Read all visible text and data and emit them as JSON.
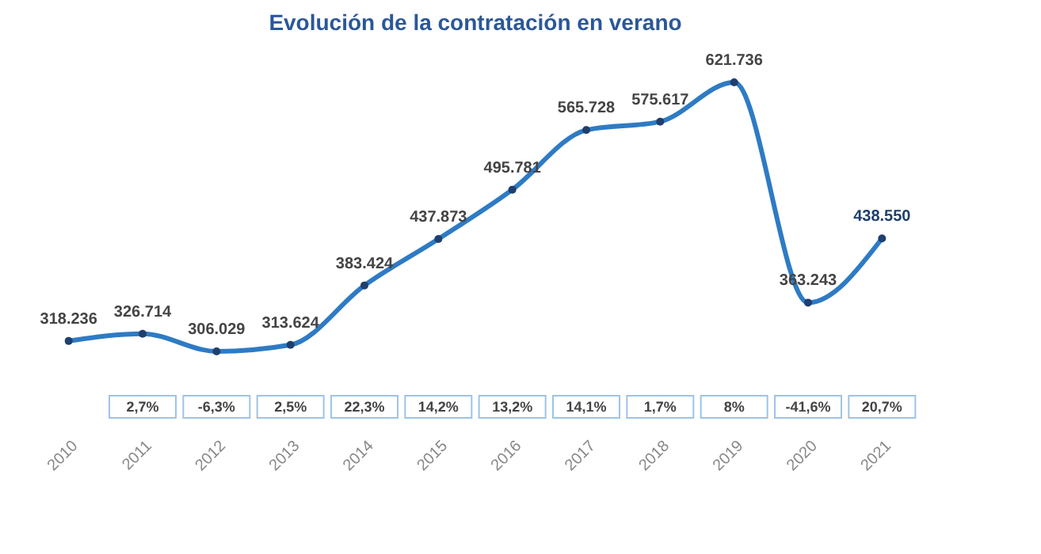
{
  "chart_data": {
    "type": "line",
    "title": "Evolución de la contratación en verano",
    "categories": [
      "2010",
      "2011",
      "2012",
      "2013",
      "2014",
      "2015",
      "2016",
      "2017",
      "2018",
      "2019",
      "2020",
      "2021"
    ],
    "series": [
      {
        "color": "#2e7bc4",
        "values": [
          318236,
          326714,
          306029,
          313624,
          383424,
          437873,
          495781,
          565728,
          575617,
          621736,
          363243,
          438550
        ],
        "value_labels": [
          "318.236",
          "326.714",
          "306.029",
          "313.624",
          "383.424",
          "437.873",
          "495.781",
          "565.728",
          "575.617",
          "621.736",
          "363.243",
          "438.550"
        ]
      }
    ],
    "marker": "circle",
    "annotations": [
      "2,7%",
      "-6,3%",
      "2,5%",
      "22,3%",
      "14,2%",
      "13,2%",
      "14,1%",
      "1,7%",
      "8%",
      "-41,6%",
      "20,7%"
    ]
  }
}
